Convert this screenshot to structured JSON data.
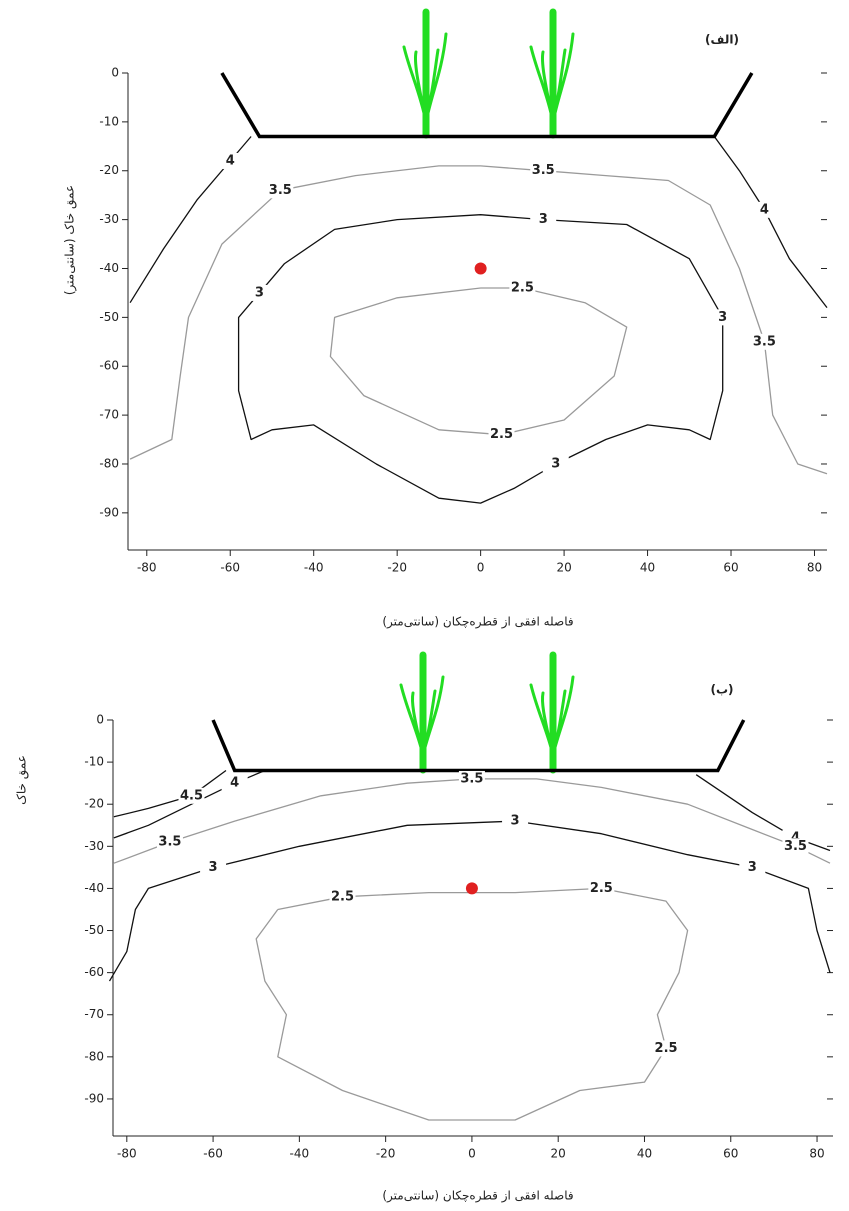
{
  "chart_data": [
    {
      "type": "contour",
      "title": "(الف)",
      "x_label": "فاصله افقی از قطره‌چکان (سانتی‌متر)",
      "y_label": "عمق خاک (سانتی‌متر)",
      "xlim": [
        -84.5,
        83
      ],
      "ylim": [
        -97.6,
        0
      ],
      "xticks": [
        -80,
        -60,
        -40,
        -20,
        0,
        20,
        40,
        60,
        80
      ],
      "yticks": [
        0,
        -10,
        -20,
        -30,
        -40,
        -50,
        -60,
        -70,
        -80,
        -90
      ],
      "surface": {
        "color": "#000000",
        "x": [
          -62,
          -53,
          56,
          65
        ],
        "y": [
          0,
          -13,
          -13,
          0
        ]
      },
      "emitter": {
        "color": "#e02020",
        "x": 0,
        "y": -40
      },
      "contours": [
        {
          "level": 4,
          "color": "#111111",
          "x": [
            -55,
            -60,
            -68,
            -76,
            -84
          ],
          "y": [
            -13,
            -18,
            -26,
            -36,
            -47
          ]
        },
        {
          "level": 4,
          "color": "#111111",
          "x": [
            56,
            62,
            68,
            74,
            83
          ],
          "y": [
            -13,
            -20,
            -28,
            -38,
            -48
          ]
        },
        {
          "level": 3.5,
          "color": "#9a9a9a",
          "x": [
            -84,
            -74,
            -72,
            -70,
            -62,
            -48,
            -30,
            -10,
            0,
            15,
            30,
            45,
            55,
            62,
            68,
            70,
            76,
            83
          ],
          "y": [
            -79,
            -75,
            -62,
            -50,
            -35,
            -24,
            -21,
            -19,
            -19,
            -20,
            -21,
            -22,
            -27,
            -40,
            -55,
            -70,
            -80,
            -82
          ]
        },
        {
          "level": 3,
          "color": "#111111",
          "x": [
            -47,
            -35,
            -20,
            0,
            15,
            35,
            50,
            58,
            58,
            55,
            50,
            40,
            30,
            18,
            8,
            0,
            -10,
            -25,
            -40,
            -50,
            -55,
            -58,
            -58,
            -53,
            -47
          ],
          "y": [
            -39,
            -32,
            -30,
            -29,
            -30,
            -31,
            -38,
            -50,
            -65,
            -75,
            -73,
            -72,
            -75,
            -80,
            -85,
            -88,
            -87,
            -80,
            -72,
            -73,
            -75,
            -65,
            -50,
            -45,
            -39
          ]
        },
        {
          "level": 2.5,
          "color": "#9a9a9a",
          "x": [
            0,
            -20,
            -35,
            -36,
            -28,
            -10,
            5,
            20,
            32,
            35,
            25,
            10,
            0
          ],
          "y": [
            -44,
            -46,
            -50,
            -58,
            -66,
            -73,
            -74,
            -71,
            -62,
            -52,
            -47,
            -44,
            -44
          ]
        }
      ]
    },
    {
      "type": "contour",
      "title": "(ب)",
      "x_label": "فاصله افقی از قطره‌چکان (سانتی‌متر)",
      "y_label": "عمق خاک",
      "xlim": [
        -83.2,
        83.7
      ],
      "ylim": [
        -98.8,
        0
      ],
      "xticks": [
        -80,
        -60,
        -40,
        -20,
        0,
        20,
        40,
        60,
        80
      ],
      "yticks": [
        0,
        -10,
        -20,
        -30,
        -40,
        -50,
        -60,
        -70,
        -80,
        -90
      ],
      "surface": {
        "color": "#000000",
        "x": [
          -60,
          -55,
          57,
          63
        ],
        "y": [
          0,
          -12,
          -12,
          0
        ]
      },
      "emitter": {
        "color": "#e02020",
        "x": 0,
        "y": -40
      },
      "contours": [
        {
          "level": 4.5,
          "color": "#111111",
          "x": [
            -57,
            -65,
            -75,
            -83
          ],
          "y": [
            -12,
            -18,
            -21,
            -23
          ]
        },
        {
          "level": 4,
          "color": "#111111",
          "x": [
            -48,
            -55,
            -65,
            -75,
            -83
          ],
          "y": [
            -12,
            -15,
            -20,
            -25,
            -28
          ]
        },
        {
          "level": 4,
          "color": "#111111",
          "x": [
            52,
            65,
            75,
            83
          ],
          "y": [
            -13,
            -22,
            -28,
            -31
          ]
        },
        {
          "level": 3.5,
          "color": "#9a9a9a",
          "x": [
            -83,
            -70,
            -55,
            -35,
            -15,
            0,
            15,
            30,
            50,
            65,
            75,
            83
          ],
          "y": [
            -34,
            -29,
            -24,
            -18,
            -15,
            -14,
            -14,
            -16,
            -20,
            -26,
            -30,
            -34
          ]
        },
        {
          "level": 3,
          "color": "#111111",
          "x": [
            -84,
            -80,
            -78,
            -75,
            -60,
            -40,
            -15,
            10,
            30,
            50,
            65,
            78,
            80,
            83
          ],
          "y": [
            -62,
            -55,
            -45,
            -40,
            -35,
            -30,
            -25,
            -24,
            -27,
            -32,
            -35,
            -40,
            -50,
            -60
          ]
        },
        {
          "level": 2.5,
          "color": "#9a9a9a",
          "x": [
            -45,
            -30,
            -10,
            10,
            30,
            45,
            50,
            48,
            43,
            45,
            40,
            25,
            10,
            -10,
            -30,
            -45,
            -43,
            -48,
            -50,
            -45
          ],
          "y": [
            -45,
            -42,
            -41,
            -41,
            -40,
            -43,
            -50,
            -60,
            -70,
            -78,
            -86,
            -88,
            -95,
            -95,
            -88,
            -80,
            -70,
            -62,
            -52,
            -45
          ]
        }
      ]
    }
  ]
}
